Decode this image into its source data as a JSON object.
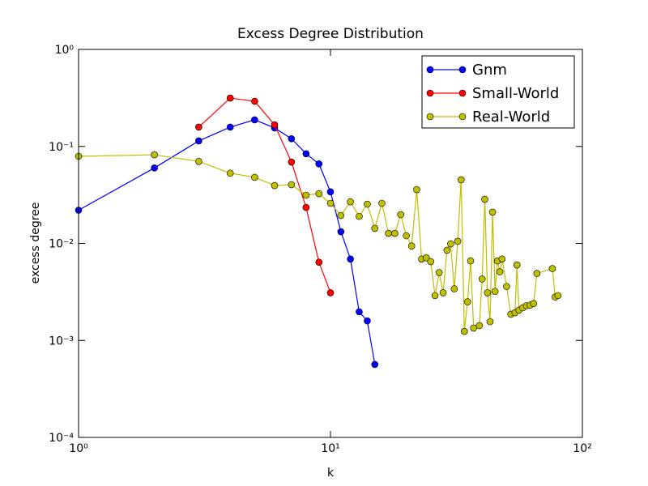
{
  "chart_data": {
    "type": "line",
    "title": "Excess Degree Distribution",
    "x_label": "k",
    "y_label": "excess degree",
    "xscale": "log",
    "yscale": "log",
    "xlim": [
      1,
      100
    ],
    "ylim": [
      0.0001,
      1
    ],
    "xticks": [
      {
        "value": 1,
        "label": "10⁰"
      },
      {
        "value": 10,
        "label": "10¹"
      },
      {
        "value": 100,
        "label": "10²"
      }
    ],
    "yticks": [
      {
        "value": 0.0001,
        "label": "10⁻⁴"
      },
      {
        "value": 0.001,
        "label": "10⁻³"
      },
      {
        "value": 0.01,
        "label": "10⁻²"
      },
      {
        "value": 0.1,
        "label": "10⁻¹"
      },
      {
        "value": 1,
        "label": "10⁰"
      }
    ],
    "legend": "upper right",
    "series": [
      {
        "name": "Gnm",
        "color": "#0000ff",
        "x": [
          1,
          2,
          3,
          4,
          5,
          6,
          7,
          8,
          9,
          10,
          11,
          12,
          13,
          14,
          15
        ],
        "values": [
          0.022,
          0.06,
          0.114,
          0.158,
          0.188,
          0.155,
          0.12,
          0.084,
          0.066,
          0.034,
          0.0132,
          0.0069,
          0.00197,
          0.00159,
          0.000565
        ]
      },
      {
        "name": "Small-World",
        "color": "#ff0000",
        "x": [
          3,
          4,
          5,
          6,
          7,
          8,
          9,
          10
        ],
        "values": [
          0.158,
          0.315,
          0.292,
          0.167,
          0.069,
          0.0235,
          0.0064,
          0.0031
        ]
      },
      {
        "name": "Real-World",
        "color": "#bfbf00",
        "x": [
          1,
          2,
          3,
          4,
          5,
          6,
          7,
          8,
          9,
          10,
          11,
          12,
          13,
          14,
          15,
          16,
          17,
          18,
          19,
          20,
          21,
          22,
          23,
          24,
          25,
          26,
          27,
          28,
          29,
          30,
          31,
          32,
          33,
          34,
          35,
          36,
          37,
          39,
          40,
          41,
          42,
          43,
          44,
          45,
          46,
          47,
          48,
          50,
          52,
          54,
          55,
          56,
          58,
          60,
          62,
          64,
          66,
          76,
          78,
          80
        ],
        "values": [
          0.079,
          0.082,
          0.07,
          0.053,
          0.048,
          0.0395,
          0.0403,
          0.0314,
          0.0326,
          0.0259,
          0.0194,
          0.0269,
          0.019,
          0.0254,
          0.0143,
          0.0259,
          0.0127,
          0.0127,
          0.0198,
          0.012,
          0.0094,
          0.0359,
          0.0069,
          0.0071,
          0.0065,
          0.0029,
          0.005,
          0.0031,
          0.0085,
          0.0099,
          0.0034,
          0.0105,
          0.0453,
          0.00124,
          0.0025,
          0.0066,
          0.00134,
          0.00142,
          0.0043,
          0.0285,
          0.0031,
          0.00156,
          0.021,
          0.0032,
          0.0066,
          0.0051,
          0.0069,
          0.0036,
          0.00186,
          0.00193,
          0.006,
          0.00205,
          0.00217,
          0.00228,
          0.00231,
          0.0024,
          0.0049,
          0.0055,
          0.0028,
          0.0029
        ]
      }
    ]
  }
}
